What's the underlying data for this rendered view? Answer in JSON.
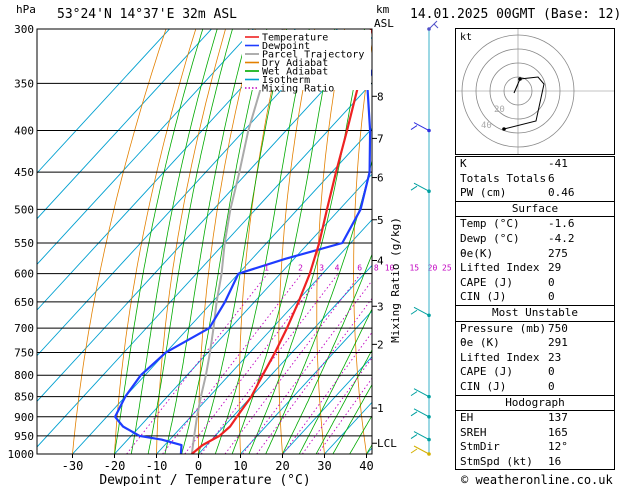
{
  "header": {
    "location": "53°24'N 14°37'E 32m ASL",
    "datetime": "14.01.2025 00GMT (Base: 12)",
    "hpa_label": "hPa",
    "km_label": "km",
    "asl_label": "ASL",
    "footer": "© weatheronline.co.uk"
  },
  "chart_data": {
    "type": "skew-t",
    "xlabel": "Dewpoint / Temperature (°C)",
    "ylabel_right": "Mixing Ratio (g/kg)",
    "temp_ticks": [
      "-30",
      "-20",
      "-10",
      "0",
      "10",
      "20",
      "30",
      "40"
    ],
    "pressure_levels": [
      "300",
      "350",
      "400",
      "450",
      "500",
      "550",
      "600",
      "650",
      "700",
      "750",
      "800",
      "850",
      "900",
      "950",
      "1000"
    ],
    "km_ticks": [
      "8",
      "7",
      "6",
      "5",
      "4",
      "3",
      "2",
      "1",
      "LCL"
    ],
    "mixing_ratio_labels": [
      "1",
      "2",
      "3",
      "4",
      "6",
      "8",
      "10",
      "15",
      "20",
      "25"
    ],
    "legend": [
      {
        "label": "Temperature",
        "color": "#ee2222"
      },
      {
        "label": "Dewpoint",
        "color": "#1e3cff"
      },
      {
        "label": "Parcel Trajectory",
        "color": "#999999"
      },
      {
        "label": "Dry Adiabat",
        "color": "#e38000"
      },
      {
        "label": "Wet Adiabat",
        "color": "#00aa00"
      },
      {
        "label": "Isotherm",
        "color": "#00a0d0"
      },
      {
        "label": "Mixing Ratio",
        "color": "#c000c0"
      }
    ],
    "temperature_profile": [
      [
        1000,
        -1.6
      ],
      [
        975,
        -1
      ],
      [
        950,
        1
      ],
      [
        925,
        1.5
      ],
      [
        900,
        1
      ],
      [
        850,
        0
      ],
      [
        800,
        -2
      ],
      [
        750,
        -4
      ],
      [
        700,
        -6.5
      ],
      [
        650,
        -9.5
      ],
      [
        600,
        -13
      ],
      [
        550,
        -17.5
      ],
      [
        500,
        -23
      ],
      [
        450,
        -29
      ],
      [
        400,
        -35.5
      ],
      [
        350,
        -43
      ],
      [
        300,
        -52
      ]
    ],
    "dewpoint_profile": [
      [
        1000,
        -4.2
      ],
      [
        975,
        -6
      ],
      [
        960,
        -12
      ],
      [
        950,
        -18
      ],
      [
        925,
        -24
      ],
      [
        900,
        -28
      ],
      [
        850,
        -30
      ],
      [
        800,
        -31
      ],
      [
        750,
        -30
      ],
      [
        700,
        -25
      ],
      [
        650,
        -27
      ],
      [
        600,
        -30
      ],
      [
        575,
        -22
      ],
      [
        550,
        -12
      ],
      [
        500,
        -15
      ],
      [
        450,
        -21
      ],
      [
        400,
        -30
      ],
      [
        350,
        -41
      ],
      [
        300,
        -48
      ]
    ],
    "parcel_profile": [
      [
        1000,
        -1.6
      ],
      [
        950,
        -5
      ],
      [
        900,
        -8.5
      ],
      [
        850,
        -12
      ],
      [
        800,
        -15.5
      ],
      [
        750,
        -19.5
      ],
      [
        700,
        -24
      ],
      [
        650,
        -29
      ],
      [
        600,
        -34
      ],
      [
        550,
        -40
      ],
      [
        500,
        -46
      ],
      [
        450,
        -52
      ],
      [
        400,
        -59
      ],
      [
        350,
        -66
      ],
      [
        300,
        -73
      ]
    ]
  },
  "stats": {
    "rows": [
      {
        "k": "K",
        "v": "-41"
      },
      {
        "k": "Totals Totals",
        "v": "6"
      },
      {
        "k": "PW (cm)",
        "v": "0.46"
      }
    ]
  },
  "surface": {
    "title": "Surface",
    "rows": [
      {
        "k": "Temp (°C)",
        "v": "-1.6"
      },
      {
        "k": "Dewp (°C)",
        "v": "-4.2"
      },
      {
        "k": "θe(K)",
        "v": "275"
      },
      {
        "k": "Lifted Index",
        "v": "29"
      },
      {
        "k": "CAPE (J)",
        "v": "0"
      },
      {
        "k": "CIN (J)",
        "v": "0"
      }
    ]
  },
  "most_unstable": {
    "title": "Most Unstable",
    "rows": [
      {
        "k": "Pressure (mb)",
        "v": "750"
      },
      {
        "k": "θe (K)",
        "v": "291"
      },
      {
        "k": "Lifted Index",
        "v": "23"
      },
      {
        "k": "CAPE (J)",
        "v": "0"
      },
      {
        "k": "CIN (J)",
        "v": "0"
      }
    ]
  },
  "hodograph": {
    "title": "Hodograph",
    "kt_label": "kt",
    "ring_labels": [
      "20",
      "40"
    ],
    "rows": [
      {
        "k": "EH",
        "v": "137"
      },
      {
        "k": "SREH",
        "v": "165"
      },
      {
        "k": "StmDir",
        "v": "12°"
      },
      {
        "k": "StmSpd (kt)",
        "v": "16"
      }
    ]
  }
}
